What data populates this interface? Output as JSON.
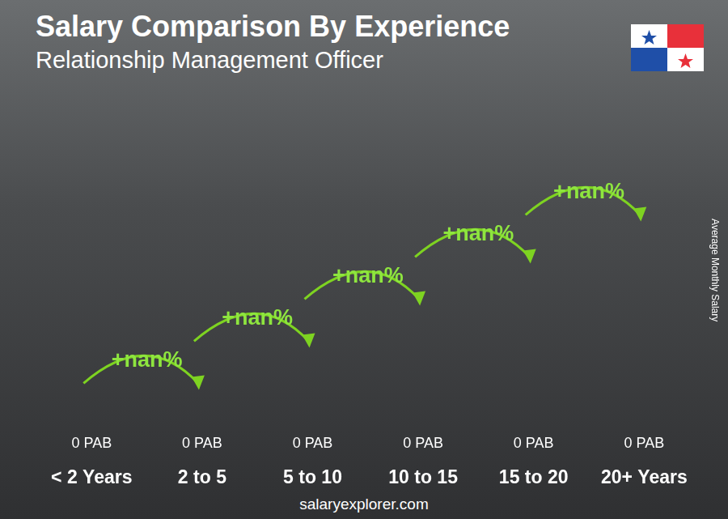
{
  "chart_data": {
    "type": "bar",
    "title": "Salary Comparison By Experience",
    "subtitle": "Relationship Management Officer",
    "y_label": "Average Monthly Salary",
    "categories": [
      "< 2 Years",
      "2 to 5",
      "5 to 10",
      "10 to 15",
      "15 to 20",
      "20+ Years"
    ],
    "values": [
      0,
      0,
      0,
      0,
      0,
      0
    ],
    "value_labels": [
      "0 PAB",
      "0 PAB",
      "0 PAB",
      "0 PAB",
      "0 PAB",
      "0 PAB"
    ],
    "data_labels": true,
    "annotations": [
      "+nan%",
      "+nan%",
      "+nan%",
      "+nan%",
      "+nan%"
    ],
    "color": "#1ea6ea",
    "ylim": [
      0,
      1
    ],
    "grid": false,
    "tick_labels": "x",
    "source": "salaryexplorer.com"
  }
}
